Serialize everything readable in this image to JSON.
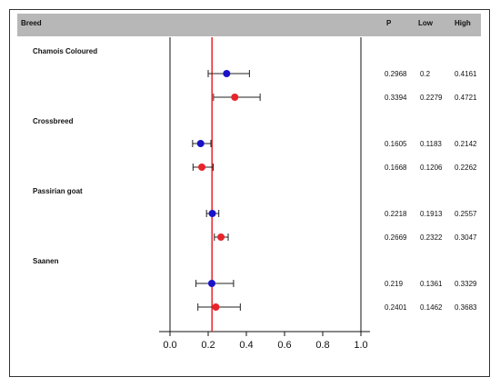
{
  "header": {
    "breed_label": "Breed",
    "p_label": "P",
    "low_label": "Low",
    "high_label": "High"
  },
  "colors": {
    "header_bg": "#b7b7b7",
    "reference_line": "#e8242b",
    "blue_marker": "#1a12c8",
    "red_marker": "#e8242b",
    "whisker": "#222222"
  },
  "chart_data": {
    "type": "scatter",
    "subtype": "forest-plot",
    "xlim": [
      0.0,
      1.0
    ],
    "xticks": [
      "0.0",
      "0.2",
      "0.4",
      "0.6",
      "0.8",
      "1.0"
    ],
    "reference_x": 0.22,
    "groups": [
      {
        "name": "Chamois Coloured",
        "rows": [
          {
            "color": "blue",
            "p": 0.2968,
            "low": 0.2,
            "high": 0.4161,
            "p_text": "0.2968",
            "low_text": "0.2",
            "high_text": "0.4161"
          },
          {
            "color": "red",
            "p": 0.3394,
            "low": 0.2279,
            "high": 0.4721,
            "p_text": "0.3394",
            "low_text": "0.2279",
            "high_text": "0.4721"
          }
        ]
      },
      {
        "name": "Crossbreed",
        "rows": [
          {
            "color": "blue",
            "p": 0.1605,
            "low": 0.1183,
            "high": 0.2142,
            "p_text": "0.1605",
            "low_text": "0.1183",
            "high_text": "0.2142"
          },
          {
            "color": "red",
            "p": 0.1668,
            "low": 0.1206,
            "high": 0.2262,
            "p_text": "0.1668",
            "low_text": "0.1206",
            "high_text": "0.2262"
          }
        ]
      },
      {
        "name": "Passirian goat",
        "rows": [
          {
            "color": "blue",
            "p": 0.2218,
            "low": 0.1913,
            "high": 0.2557,
            "p_text": "0.2218",
            "low_text": "0.1913",
            "high_text": "0.2557"
          },
          {
            "color": "red",
            "p": 0.2669,
            "low": 0.2322,
            "high": 0.3047,
            "p_text": "0.2669",
            "low_text": "0.2322",
            "high_text": "0.3047"
          }
        ]
      },
      {
        "name": "Saanen",
        "rows": [
          {
            "color": "blue",
            "p": 0.219,
            "low": 0.1361,
            "high": 0.3329,
            "p_text": "0.219",
            "low_text": "0.1361",
            "high_text": "0.3329"
          },
          {
            "color": "red",
            "p": 0.2401,
            "low": 0.1462,
            "high": 0.3683,
            "p_text": "0.2401",
            "low_text": "0.1462",
            "high_text": "0.3683"
          }
        ]
      }
    ]
  }
}
